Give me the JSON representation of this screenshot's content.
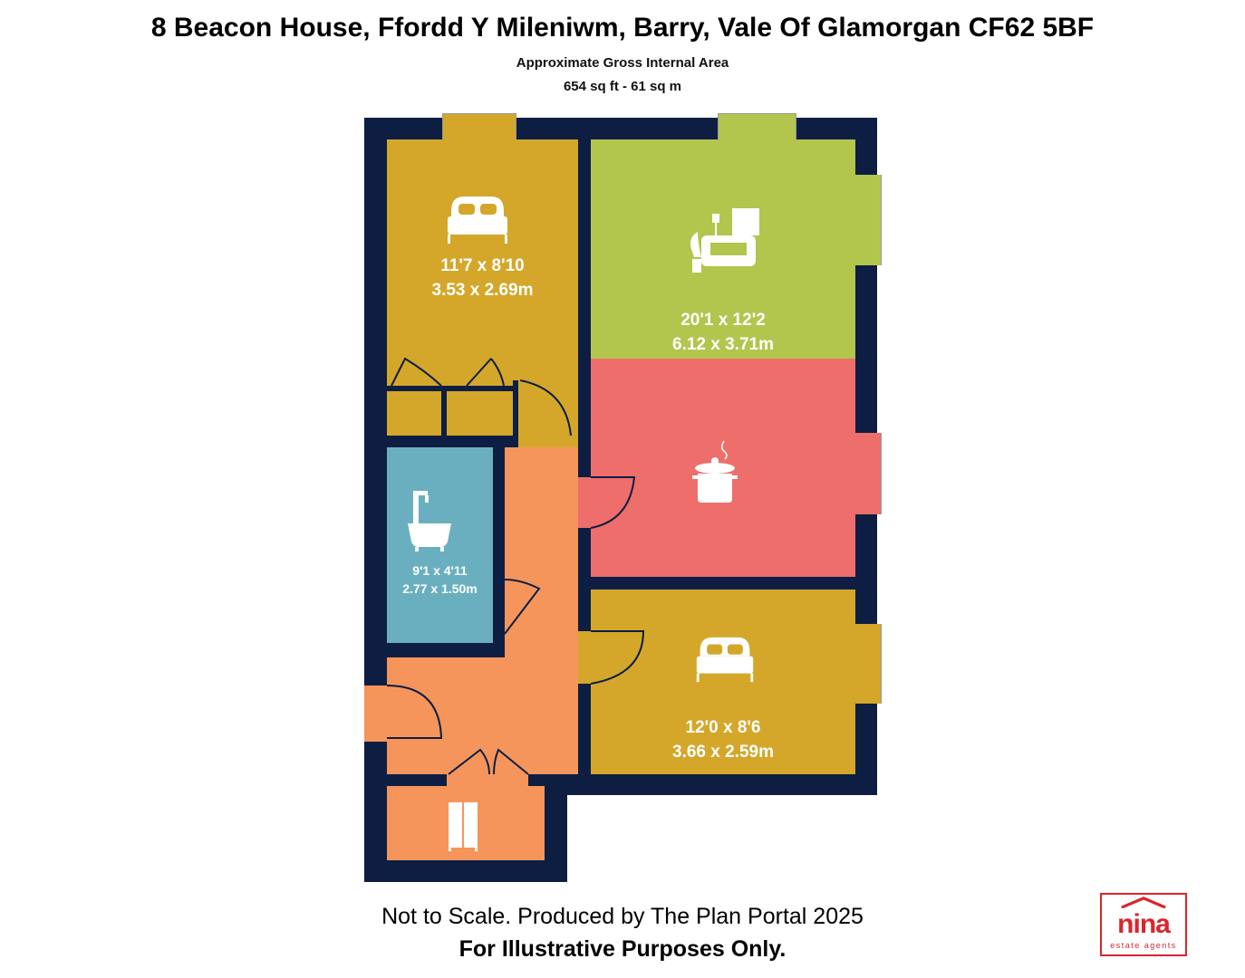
{
  "header": {
    "title": "8 Beacon House, Ffordd Y Mileniwm, Barry, Vale Of Glamorgan CF62 5BF",
    "subtitle": "Approximate Gross Internal Area",
    "area": "654 sq ft - 61 sq m"
  },
  "rooms": {
    "bedroom1": {
      "imperial": "11'7 x 8'10",
      "metric": "3.53 x 2.69m",
      "icon": "bed-icon",
      "color": "#d4a72a"
    },
    "living": {
      "imperial": "20'1 x 12'2",
      "metric": "6.12 x 3.71m",
      "icon": "sofa-icon",
      "color": "#b2c64e"
    },
    "kitchen": {
      "icon": "cooking-pot-icon",
      "color": "#ed6e6a"
    },
    "bathroom": {
      "imperial": "9'1 x 4'11",
      "metric": "2.77 x 1.50m",
      "icon": "bathtub-icon",
      "color": "#6aafc0"
    },
    "bedroom2": {
      "imperial": "12'0 x 8'6",
      "metric": "3.66 x 2.59m",
      "icon": "bed-icon",
      "color": "#d4a72a"
    },
    "hallway": {
      "color": "#f5955c"
    },
    "storage": {
      "icon": "wardrobe-icon",
      "color": "#f5955c"
    }
  },
  "walls": {
    "color": "#0d1e42"
  },
  "footer": {
    "line1": "Not to Scale. Produced by The Plan Portal 2025",
    "line2": "For Illustrative Purposes Only."
  },
  "logo": {
    "brand": "nina",
    "tagline": "estate agents",
    "color": "#d9262c"
  }
}
